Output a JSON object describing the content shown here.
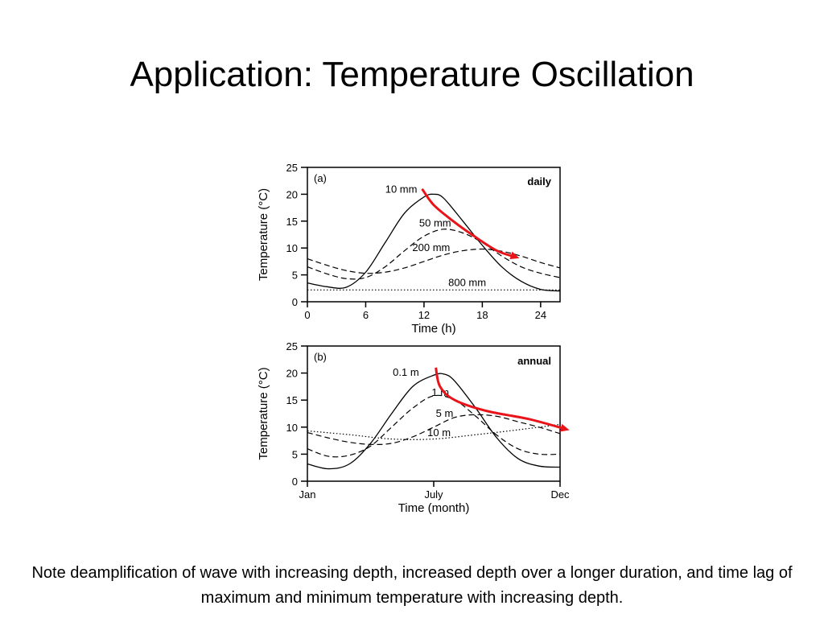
{
  "slide": {
    "title": "Application: Temperature Oscillation",
    "caption": "Note deamplification of wave with increasing depth, increased depth over a longer duration, and time lag of maximum and minimum temperature with increasing depth."
  },
  "colors": {
    "arrow": "#e8141a",
    "daily_tag": "#00a651",
    "annual_tag": "#1f77b4",
    "line": "#000000"
  },
  "chart_data": [
    {
      "type": "line",
      "panel_label": "(a)",
      "tag": "daily",
      "xlabel": "Time (h)",
      "ylabel": "Temperature (°C)",
      "xlim": [
        0,
        26
      ],
      "ylim": [
        0,
        25
      ],
      "x_ticks": [
        0,
        6,
        12,
        18,
        24
      ],
      "x_tick_labels": [
        "0",
        "6",
        "12",
        "18",
        "24"
      ],
      "y_ticks": [
        0,
        5,
        10,
        15,
        20,
        25
      ],
      "series": [
        {
          "name": "10 mm",
          "style": "solid",
          "points": [
            [
              0,
              3.5
            ],
            [
              2,
              2.8
            ],
            [
              4,
              2.7
            ],
            [
              6,
              5.5
            ],
            [
              8,
              11
            ],
            [
              10,
              16.5
            ],
            [
              12,
              19.5
            ],
            [
              13,
              20
            ],
            [
              14,
              19.3
            ],
            [
              16,
              15
            ],
            [
              18,
              10.5
            ],
            [
              20,
              6.5
            ],
            [
              22,
              3.8
            ],
            [
              24,
              2.3
            ],
            [
              26,
              2.0
            ]
          ]
        },
        {
          "name": "50 mm",
          "style": "dashed",
          "points": [
            [
              0,
              6.5
            ],
            [
              2,
              5.2
            ],
            [
              4,
              4.3
            ],
            [
              6,
              4.5
            ],
            [
              8,
              6.5
            ],
            [
              10,
              9.5
            ],
            [
              12,
              12.2
            ],
            [
              14,
              13.5
            ],
            [
              16,
              12.8
            ],
            [
              18,
              11
            ],
            [
              20,
              8.5
            ],
            [
              22,
              6.5
            ],
            [
              24,
              5.3
            ],
            [
              26,
              4.5
            ]
          ]
        },
        {
          "name": "200 mm",
          "style": "dashed",
          "points": [
            [
              0,
              8
            ],
            [
              2,
              6.8
            ],
            [
              4,
              5.8
            ],
            [
              6,
              5.3
            ],
            [
              8,
              5.5
            ],
            [
              10,
              6.3
            ],
            [
              12,
              7.5
            ],
            [
              14,
              8.7
            ],
            [
              16,
              9.5
            ],
            [
              18,
              9.8
            ],
            [
              20,
              9.4
            ],
            [
              22,
              8.5
            ],
            [
              24,
              7.3
            ],
            [
              26,
              6.3
            ]
          ]
        },
        {
          "name": "800 mm",
          "style": "dotted",
          "points": [
            [
              0,
              2.2
            ],
            [
              26,
              2.2
            ]
          ]
        }
      ],
      "annotation_arrow": "phase lag of maximum with depth"
    },
    {
      "type": "line",
      "panel_label": "(b)",
      "tag": "annual",
      "xlabel": "Time (month)",
      "ylabel": "Temperature (°C)",
      "xlim": [
        0,
        12
      ],
      "ylim": [
        0,
        25
      ],
      "x_ticks": [
        0,
        6,
        12
      ],
      "x_tick_labels": [
        "Jan",
        "July",
        "Dec"
      ],
      "y_ticks": [
        0,
        5,
        10,
        15,
        20,
        25
      ],
      "series": [
        {
          "name": "0.1 m",
          "style": "solid",
          "points": [
            [
              0,
              3.2
            ],
            [
              1,
              2.3
            ],
            [
              2,
              3.2
            ],
            [
              3,
              7
            ],
            [
              4,
              12.5
            ],
            [
              5,
              17.5
            ],
            [
              6,
              19.6
            ],
            [
              6.5,
              19.8
            ],
            [
              7,
              18.5
            ],
            [
              8,
              13.5
            ],
            [
              9,
              8
            ],
            [
              10,
              4.2
            ],
            [
              11,
              2.8
            ],
            [
              12,
              2.6
            ]
          ]
        },
        {
          "name": "1 m",
          "style": "dashed",
          "points": [
            [
              0,
              6
            ],
            [
              1,
              4.6
            ],
            [
              2,
              4.8
            ],
            [
              3,
              6.5
            ],
            [
              4,
              10
            ],
            [
              5,
              13.5
            ],
            [
              6,
              15.8
            ],
            [
              7,
              15
            ],
            [
              8,
              12
            ],
            [
              9,
              8.5
            ],
            [
              10,
              6
            ],
            [
              11,
              5
            ],
            [
              12,
              5
            ]
          ]
        },
        {
          "name": "5 m",
          "style": "dashed",
          "points": [
            [
              0,
              9
            ],
            [
              1,
              8
            ],
            [
              2,
              7.2
            ],
            [
              3,
              6.8
            ],
            [
              4,
              7
            ],
            [
              5,
              8.2
            ],
            [
              6,
              10
            ],
            [
              7,
              11.8
            ],
            [
              8,
              12.3
            ],
            [
              9,
              12
            ],
            [
              10,
              11
            ],
            [
              11,
              10
            ],
            [
              12,
              8.8
            ]
          ]
        },
        {
          "name": "10 m",
          "style": "dotted",
          "points": [
            [
              0,
              9.3
            ],
            [
              2,
              8.6
            ],
            [
              4,
              7.8
            ],
            [
              6,
              7.8
            ],
            [
              8,
              8.6
            ],
            [
              10,
              9.5
            ],
            [
              12,
              10.5
            ]
          ]
        }
      ],
      "annotation_arrow": "phase lag of maximum with depth"
    }
  ]
}
